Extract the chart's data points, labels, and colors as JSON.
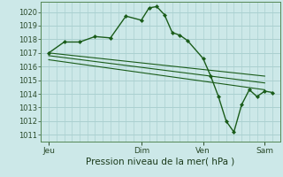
{
  "bg_color": "#cce8e8",
  "grid_color": "#aad0d0",
  "line_color": "#1a5c1a",
  "marker_color": "#1a5c1a",
  "xlabel": "Pression niveau de la mer( hPa )",
  "ylim": [
    1010.5,
    1020.75
  ],
  "yticks": [
    1011,
    1012,
    1013,
    1014,
    1015,
    1016,
    1017,
    1018,
    1019,
    1020
  ],
  "xtick_labels": [
    "Jeu",
    "Dim",
    "Ven",
    "Sam"
  ],
  "xtick_positions": [
    0,
    36,
    60,
    84
  ],
  "xlim": [
    -3,
    90
  ],
  "main_line": {
    "x": [
      0,
      6,
      12,
      18,
      24,
      30,
      36,
      39,
      42,
      45,
      48,
      51,
      54,
      60,
      63,
      66,
      69,
      72,
      75,
      78,
      81,
      84,
      87
    ],
    "y": [
      1017.0,
      1017.8,
      1017.8,
      1018.2,
      1018.1,
      1019.7,
      1019.4,
      1020.3,
      1020.4,
      1019.8,
      1018.5,
      1018.3,
      1017.9,
      1016.6,
      1015.3,
      1013.8,
      1012.0,
      1011.2,
      1013.2,
      1014.3,
      1013.8,
      1014.2,
      1014.1
    ]
  },
  "ref_lines": [
    {
      "x": [
        0,
        84
      ],
      "y": [
        1017.0,
        1015.3
      ]
    },
    {
      "x": [
        0,
        84
      ],
      "y": [
        1016.8,
        1014.8
      ]
    },
    {
      "x": [
        0,
        84
      ],
      "y": [
        1016.5,
        1014.3
      ]
    }
  ],
  "xlabel_fontsize": 7.5,
  "ytick_fontsize": 6,
  "xtick_fontsize": 6.5
}
